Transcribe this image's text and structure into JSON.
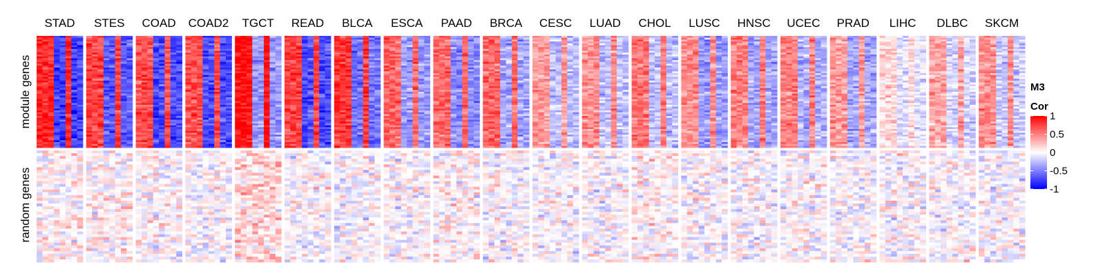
{
  "chart_data": {
    "type": "heatmap",
    "columns": [
      "STAD",
      "STES",
      "COAD",
      "COAD2",
      "TGCT",
      "READ",
      "BLCA",
      "ESCA",
      "PAAD",
      "BRCA",
      "CESC",
      "LUAD",
      "CHOL",
      "LUSC",
      "HNSC",
      "UCEC",
      "PRAD",
      "LIHC",
      "DLBC",
      "SKCM"
    ],
    "rows": [
      "module genes",
      "random genes"
    ],
    "legend": {
      "title_line1": "M3",
      "title_line2": "Cor",
      "ticks": [
        {
          "value": 1,
          "label": "1"
        },
        {
          "value": 0.5,
          "label": "0.5"
        },
        {
          "value": 0,
          "label": "0"
        },
        {
          "value": -0.5,
          "label": "-0.5"
        },
        {
          "value": -1,
          "label": "-1"
        }
      ],
      "range": [
        -1,
        1
      ],
      "colors": {
        "low": "#0000ff",
        "mid": "#ffffff",
        "high": "#ff0000"
      }
    },
    "panel_summary": [
      {
        "column": "STAD",
        "module_mean_left": 0.85,
        "module_mean_right": -0.75,
        "random_mean": 0.05
      },
      {
        "column": "STES",
        "module_mean_left": 0.75,
        "module_mean_right": -0.65,
        "random_mean": 0.05
      },
      {
        "column": "COAD",
        "module_mean_left": 0.7,
        "module_mean_right": -0.7,
        "random_mean": 0.0
      },
      {
        "column": "COAD2",
        "module_mean_left": 0.7,
        "module_mean_right": -0.7,
        "random_mean": 0.0
      },
      {
        "column": "TGCT",
        "module_mean_left": 0.95,
        "module_mean_right": -0.4,
        "random_mean": 0.15
      },
      {
        "column": "READ",
        "module_mean_left": 0.75,
        "module_mean_right": -0.7,
        "random_mean": 0.0
      },
      {
        "column": "BLCA",
        "module_mean_left": 0.8,
        "module_mean_right": -0.55,
        "random_mean": 0.0
      },
      {
        "column": "ESCA",
        "module_mean_left": 0.6,
        "module_mean_right": -0.4,
        "random_mean": 0.0
      },
      {
        "column": "PAAD",
        "module_mean_left": 0.6,
        "module_mean_right": -0.45,
        "random_mean": 0.05
      },
      {
        "column": "BRCA",
        "module_mean_left": 0.6,
        "module_mean_right": -0.35,
        "random_mean": 0.0
      },
      {
        "column": "CESC",
        "module_mean_left": 0.4,
        "module_mean_right": -0.25,
        "random_mean": 0.0
      },
      {
        "column": "LUAD",
        "module_mean_left": 0.45,
        "module_mean_right": -0.25,
        "random_mean": 0.0
      },
      {
        "column": "CHOL",
        "module_mean_left": 0.55,
        "module_mean_right": -0.25,
        "random_mean": 0.05
      },
      {
        "column": "LUSC",
        "module_mean_left": 0.45,
        "module_mean_right": -0.4,
        "random_mean": 0.0
      },
      {
        "column": "HNSC",
        "module_mean_left": 0.5,
        "module_mean_right": -0.35,
        "random_mean": 0.0
      },
      {
        "column": "UCEC",
        "module_mean_left": 0.5,
        "module_mean_right": -0.3,
        "random_mean": 0.0
      },
      {
        "column": "PRAD",
        "module_mean_left": 0.4,
        "module_mean_right": -0.35,
        "random_mean": 0.0
      },
      {
        "column": "LIHC",
        "module_mean_left": 0.15,
        "module_mean_right": -0.1,
        "random_mean": 0.0
      },
      {
        "column": "DLBC",
        "module_mean_left": 0.35,
        "module_mean_right": -0.15,
        "random_mean": 0.0
      },
      {
        "column": "SKCM",
        "module_mean_left": 0.45,
        "module_mean_right": -0.2,
        "random_mean": 0.0
      }
    ]
  }
}
